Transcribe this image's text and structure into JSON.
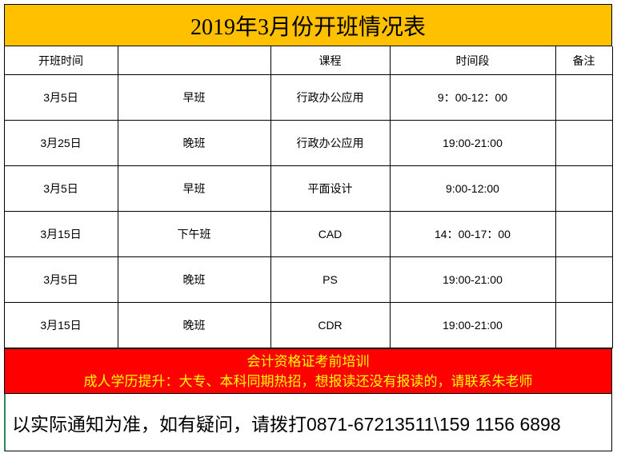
{
  "title": "2019年3月份开班情况表",
  "table": {
    "header": [
      "开班时间",
      "课程",
      "时间段",
      "备注"
    ],
    "rows": [
      [
        "3月5日",
        "早班",
        "行政办公应用",
        "9：00-12：00"
      ],
      [
        "3月25日",
        "晚班",
        "行政办公应用",
        "19:00-21:00"
      ],
      [
        "3月5日",
        "早班",
        "平面设计",
        "9:00-12:00"
      ],
      [
        "3月15日",
        "下午班",
        "CAD",
        "14：00-17：00"
      ],
      [
        "3月5日",
        "晚班",
        "PS",
        "19:00-21:00"
      ],
      [
        "3月15日",
        "晚班",
        "CDR",
        "19:00-21:00"
      ]
    ]
  },
  "notice": {
    "line1": "会计资格证考前培训",
    "line2": "成人学历提升：大专、本科同期热招，想报读还没有报读的，请联系朱老师"
  },
  "footer": "以实际通知为准，如有疑问，请拨打0871-67213511\\159 1156 6898"
}
